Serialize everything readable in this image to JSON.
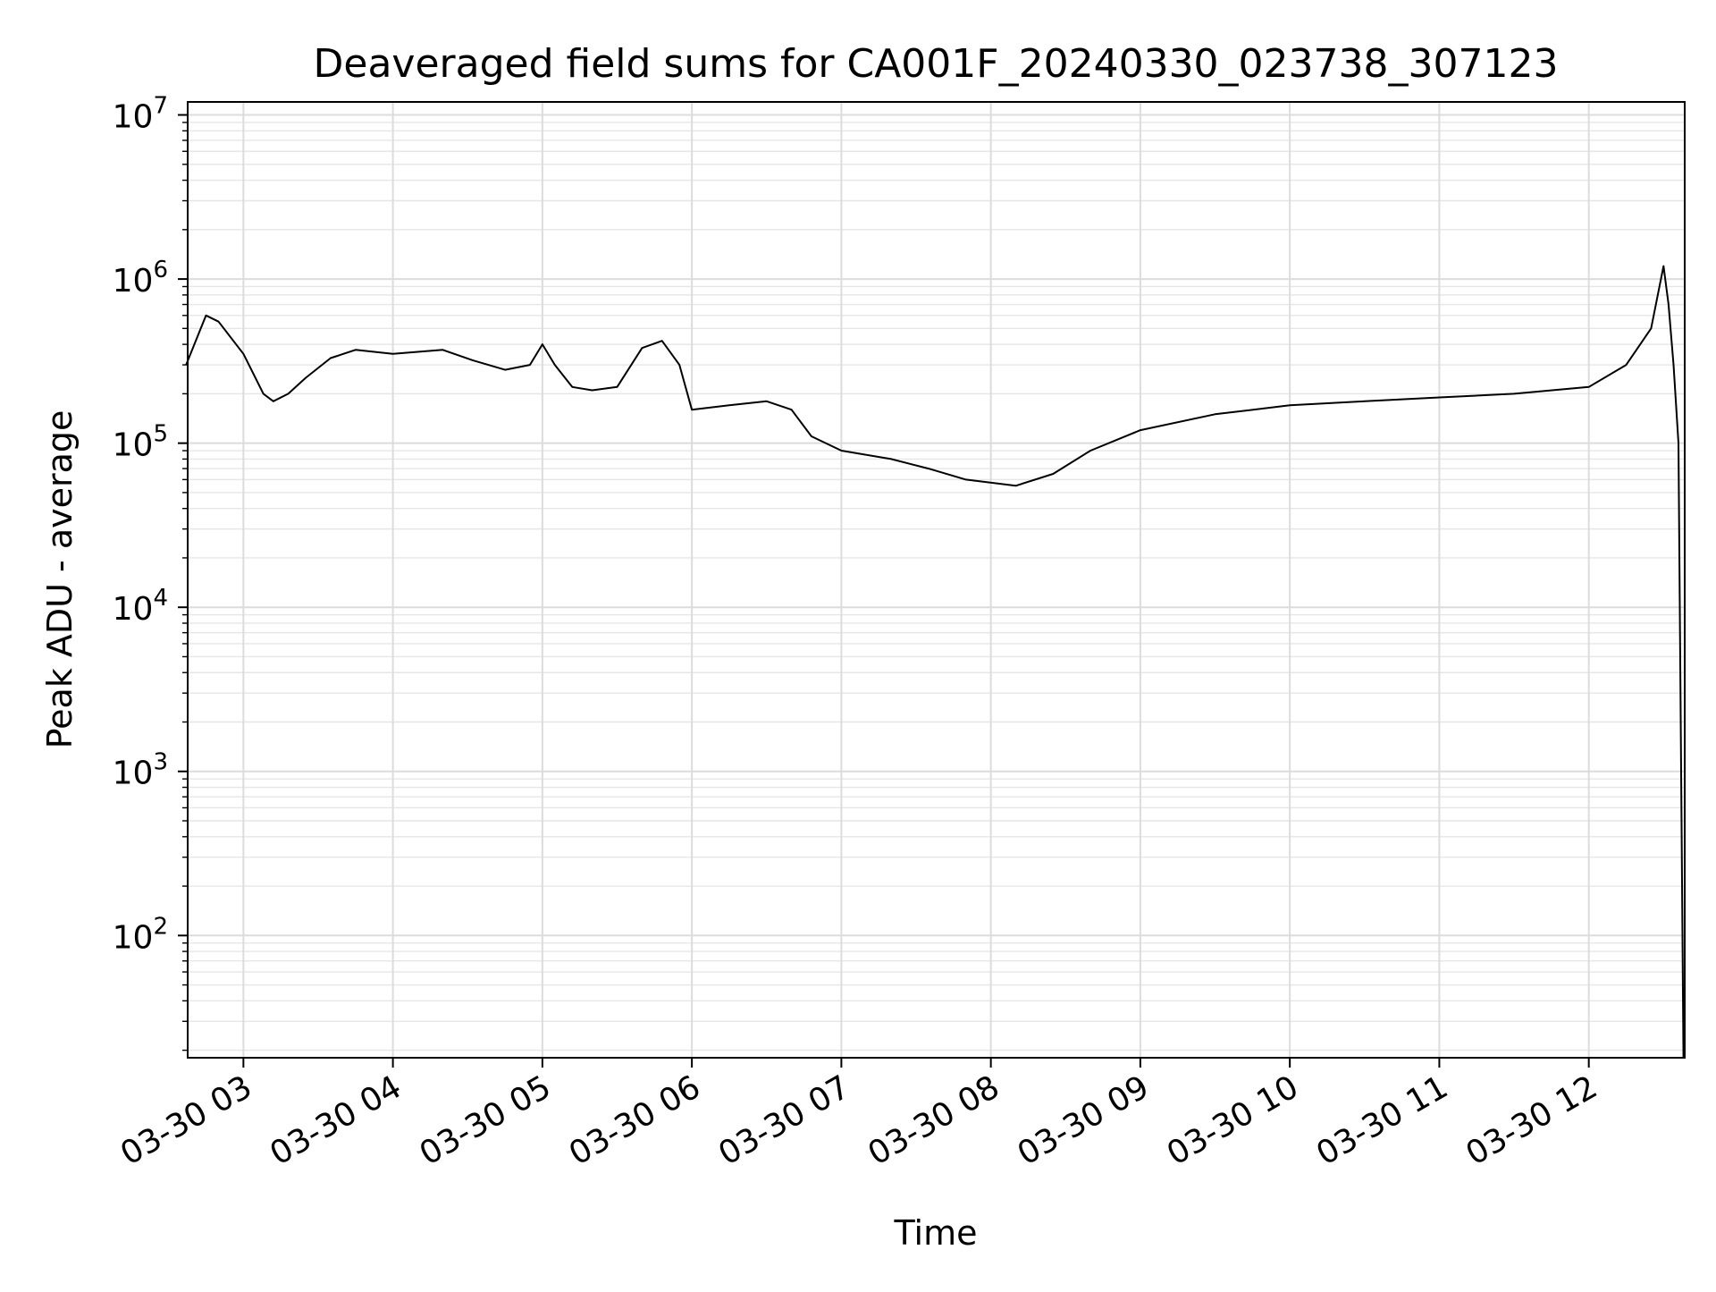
{
  "chart_data": {
    "type": "line",
    "title": "Deaveraged field sums for CA001F_20240330_023738_307123",
    "xlabel": "Time",
    "ylabel": "Peak ADU - average",
    "x_axis": {
      "kind": "time",
      "range": [
        "2024-03-30 02:37:38",
        "2024-03-30 12:38:30"
      ],
      "tick_labels": [
        "03-30 03",
        "03-30 04",
        "03-30 05",
        "03-30 06",
        "03-30 07",
        "03-30 08",
        "03-30 09",
        "03-30 10",
        "03-30 11",
        "03-30 12"
      ],
      "tick_values": [
        "2024-03-30 03:00",
        "2024-03-30 04:00",
        "2024-03-30 05:00",
        "2024-03-30 06:00",
        "2024-03-30 07:00",
        "2024-03-30 08:00",
        "2024-03-30 09:00",
        "2024-03-30 10:00",
        "2024-03-30 11:00",
        "2024-03-30 12:00"
      ]
    },
    "y_axis": {
      "scale": "log",
      "range": [
        18,
        12000000
      ],
      "tick_values": [
        100,
        1000,
        10000,
        100000,
        1000000,
        10000000
      ],
      "tick_labels": [
        {
          "base": "10",
          "exp": "2"
        },
        {
          "base": "10",
          "exp": "3"
        },
        {
          "base": "10",
          "exp": "4"
        },
        {
          "base": "10",
          "exp": "5"
        },
        {
          "base": "10",
          "exp": "6"
        },
        {
          "base": "10",
          "exp": "7"
        }
      ]
    },
    "grid": true,
    "series": [
      {
        "color": "#000000",
        "x": [
          "2024-03-30 02:37",
          "2024-03-30 02:45",
          "2024-03-30 02:50",
          "2024-03-30 03:00",
          "2024-03-30 03:08",
          "2024-03-30 03:12",
          "2024-03-30 03:18",
          "2024-03-30 03:25",
          "2024-03-30 03:35",
          "2024-03-30 03:45",
          "2024-03-30 04:00",
          "2024-03-30 04:20",
          "2024-03-30 04:32",
          "2024-03-30 04:45",
          "2024-03-30 04:55",
          "2024-03-30 05:00",
          "2024-03-30 05:05",
          "2024-03-30 05:12",
          "2024-03-30 05:20",
          "2024-03-30 05:30",
          "2024-03-30 05:40",
          "2024-03-30 05:48",
          "2024-03-30 05:55",
          "2024-03-30 06:00",
          "2024-03-30 06:15",
          "2024-03-30 06:30",
          "2024-03-30 06:40",
          "2024-03-30 06:48",
          "2024-03-30 07:00",
          "2024-03-30 07:20",
          "2024-03-30 07:35",
          "2024-03-30 07:50",
          "2024-03-30 08:10",
          "2024-03-30 08:25",
          "2024-03-30 08:40",
          "2024-03-30 09:00",
          "2024-03-30 09:30",
          "2024-03-30 10:00",
          "2024-03-30 10:30",
          "2024-03-30 11:00",
          "2024-03-30 11:30",
          "2024-03-30 12:00",
          "2024-03-30 12:15",
          "2024-03-30 12:25",
          "2024-03-30 12:30",
          "2024-03-30 12:32",
          "2024-03-30 12:34",
          "2024-03-30 12:36",
          "2024-03-30 12:38"
        ],
        "values": [
          300000,
          600000,
          550000,
          350000,
          200000,
          180000,
          200000,
          250000,
          330000,
          370000,
          350000,
          370000,
          320000,
          280000,
          300000,
          400000,
          300000,
          220000,
          210000,
          220000,
          380000,
          420000,
          300000,
          160000,
          170000,
          180000,
          160000,
          110000,
          90000,
          80000,
          70000,
          60000,
          55000,
          65000,
          90000,
          120000,
          150000,
          170000,
          180000,
          190000,
          200000,
          220000,
          300000,
          500000,
          1200000,
          700000,
          300000,
          100000,
          18
        ]
      }
    ]
  }
}
